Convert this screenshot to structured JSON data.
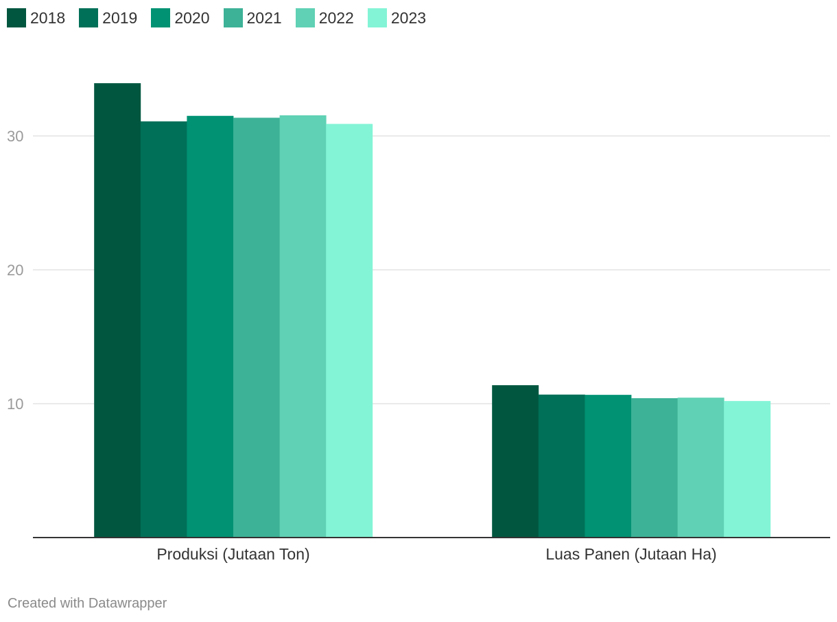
{
  "legend": {
    "items": [
      {
        "label": "2018",
        "color": "#00563f"
      },
      {
        "label": "2019",
        "color": "#007058"
      },
      {
        "label": "2020",
        "color": "#009273"
      },
      {
        "label": "2021",
        "color": "#3db297"
      },
      {
        "label": "2022",
        "color": "#60d1b4"
      },
      {
        "label": "2023",
        "color": "#84f4d6"
      }
    ]
  },
  "footer": {
    "credit": "Created with Datawrapper"
  },
  "chart_data": {
    "type": "bar",
    "categories": [
      "Produksi (Jutaan Ton)",
      "Luas Panen (Jutaan Ha)"
    ],
    "series": [
      {
        "name": "2018",
        "color": "#00563f",
        "values": [
          33.94,
          11.38
        ]
      },
      {
        "name": "2019",
        "color": "#007058",
        "values": [
          31.09,
          10.68
        ]
      },
      {
        "name": "2020",
        "color": "#009273",
        "values": [
          31.5,
          10.66
        ]
      },
      {
        "name": "2021",
        "color": "#3db297",
        "values": [
          31.36,
          10.41
        ]
      },
      {
        "name": "2022",
        "color": "#60d1b4",
        "values": [
          31.54,
          10.45
        ]
      },
      {
        "name": "2023",
        "color": "#84f4d6",
        "values": [
          30.9,
          10.2
        ]
      }
    ],
    "yticks": [
      10,
      20,
      30
    ],
    "ylim": [
      0,
      35
    ],
    "grid": true,
    "legend_position": "top-left",
    "xlabel": "",
    "ylabel": ""
  }
}
